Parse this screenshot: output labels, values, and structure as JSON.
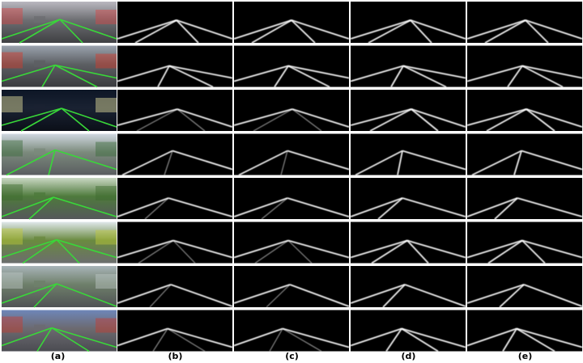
{
  "figure": {
    "column_labels": [
      "(a)",
      "(b)",
      "(c)",
      "(d)",
      "(e)"
    ],
    "rows": 8,
    "columns": 5,
    "row_scenes": [
      {
        "sky": "#b9b7bf",
        "mid": "#6d6e72",
        "road": "#3f4043",
        "accent": "#d84545"
      },
      {
        "sky": "#9aa2ad",
        "mid": "#5c5f63",
        "road": "#3b3c3f",
        "accent": "#d83a2a"
      },
      {
        "sky": "#0d1626",
        "mid": "#1a2232",
        "road": "#0b0f18",
        "accent": "#e8e4a0"
      },
      {
        "sky": "#cfd7e0",
        "mid": "#7b8a7c",
        "road": "#5a5d60",
        "accent": "#3a6a3a"
      },
      {
        "sky": "#c9d7c2",
        "mid": "#4e7a3c",
        "road": "#55585b",
        "accent": "#3d6b2e"
      },
      {
        "sky": "#dfe7ea",
        "mid": "#6a8a40",
        "road": "#6b6d6e",
        "accent": "#c2c93a"
      },
      {
        "sky": "#a8b4b8",
        "mid": "#6e7f6a",
        "road": "#505355",
        "accent": "#bfc7c7"
      },
      {
        "sky": "#6e86b8",
        "mid": "#6c6a70",
        "road": "#4b4c52",
        "accent": "#c83a2e"
      }
    ],
    "lane_color": "#39d839",
    "prediction_color": "#ffffff",
    "background_color": "#000000"
  }
}
